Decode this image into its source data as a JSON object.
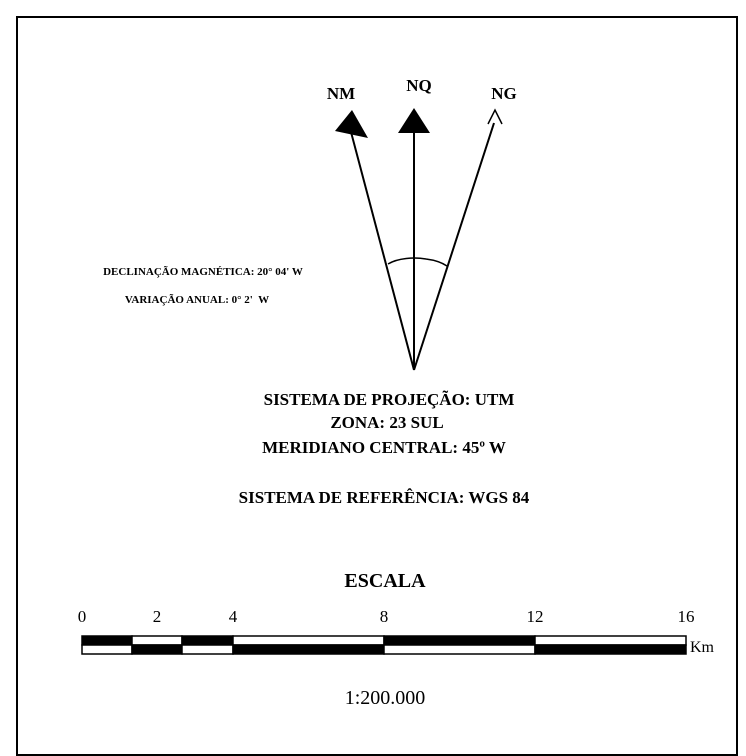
{
  "north_arrows": {
    "magnetic": "NM",
    "grid": "NQ",
    "geographic": "NG"
  },
  "declination": {
    "magnetic": "DECLINAÇÃO MAGNÉTICA: 20° 04' W",
    "annual_variation": "VARIAÇÃO ANUAL: 0° 2'  W"
  },
  "projection": {
    "system": "SISTEMA DE PROJEÇÃO: UTM",
    "zone": "ZONA: 23 SUL",
    "central_meridian": "MERIDIANO CENTRAL: 45º W",
    "reference": "SISTEMA DE REFERÊNCIA: WGS 84"
  },
  "scale": {
    "title": "ESCALA",
    "ticks": [
      "0",
      "2",
      "4",
      "8",
      "12",
      "16"
    ],
    "unit": "Km",
    "ratio": "1:200.000"
  }
}
